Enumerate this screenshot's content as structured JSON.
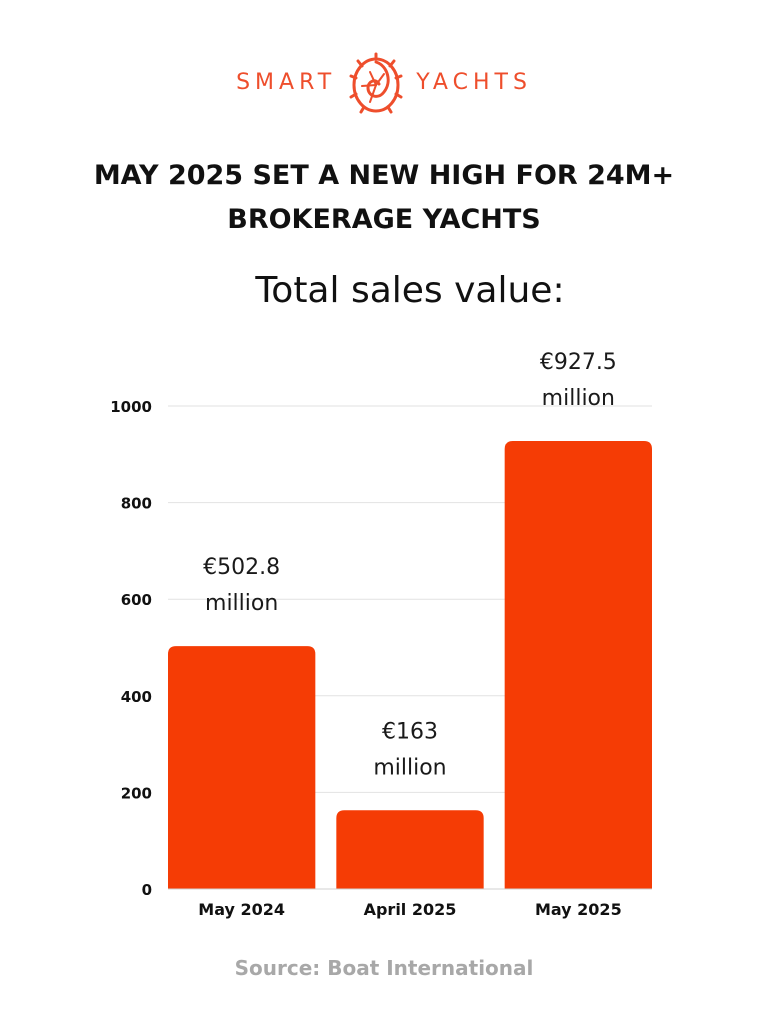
{
  "logo": {
    "left_word": "SMART",
    "right_word": "YACHTS",
    "color": "#ee4e2c"
  },
  "headline": "MAY 2025 SET A NEW HIGH FOR 24M+ BROKERAGE YACHTS",
  "chart_data": {
    "type": "bar",
    "title": "Total sales value:",
    "categories": [
      "May 2024",
      "April 2025",
      "May 2025"
    ],
    "values": [
      502.8,
      163,
      927.5
    ],
    "data_labels": [
      [
        "€502.8",
        "million"
      ],
      [
        "€163",
        "million"
      ],
      [
        "€927.5",
        "million"
      ]
    ],
    "ylim": [
      0,
      1000
    ],
    "yticks": [
      0,
      200,
      400,
      600,
      800,
      1000
    ],
    "grid": true,
    "bar_color": "#f53c05"
  },
  "source": "Source: Boat International"
}
